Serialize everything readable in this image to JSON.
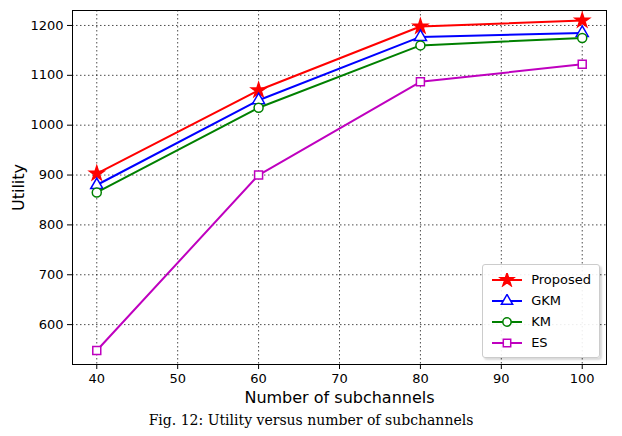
{
  "chart_data": {
    "type": "line",
    "x_label": "Number of subchannels",
    "y_label": "Utility",
    "caption": "Fig. 12: Utility versus number of subchannels",
    "x": [
      40,
      60,
      80,
      100
    ],
    "series": [
      {
        "name": "Proposed",
        "color": "#ff0000",
        "marker": "star",
        "values": [
          903,
          1070,
          1198,
          1210
        ]
      },
      {
        "name": "GKM",
        "color": "#0000ff",
        "marker": "triangle",
        "values": [
          880,
          1050,
          1177,
          1185
        ]
      },
      {
        "name": "KM",
        "color": "#008000",
        "marker": "circle",
        "values": [
          865,
          1035,
          1160,
          1175
        ]
      },
      {
        "name": "ES",
        "color": "#bf00bf",
        "marker": "square",
        "values": [
          548,
          900,
          1087,
          1122
        ]
      }
    ],
    "xlim": [
      37,
      103
    ],
    "xticks": [
      40,
      50,
      60,
      70,
      80,
      90,
      100
    ],
    "ylim": [
      520,
      1230
    ],
    "yticks": [
      600,
      700,
      800,
      900,
      1000,
      1100,
      1200
    ],
    "grid": true,
    "legend": "lower right"
  }
}
